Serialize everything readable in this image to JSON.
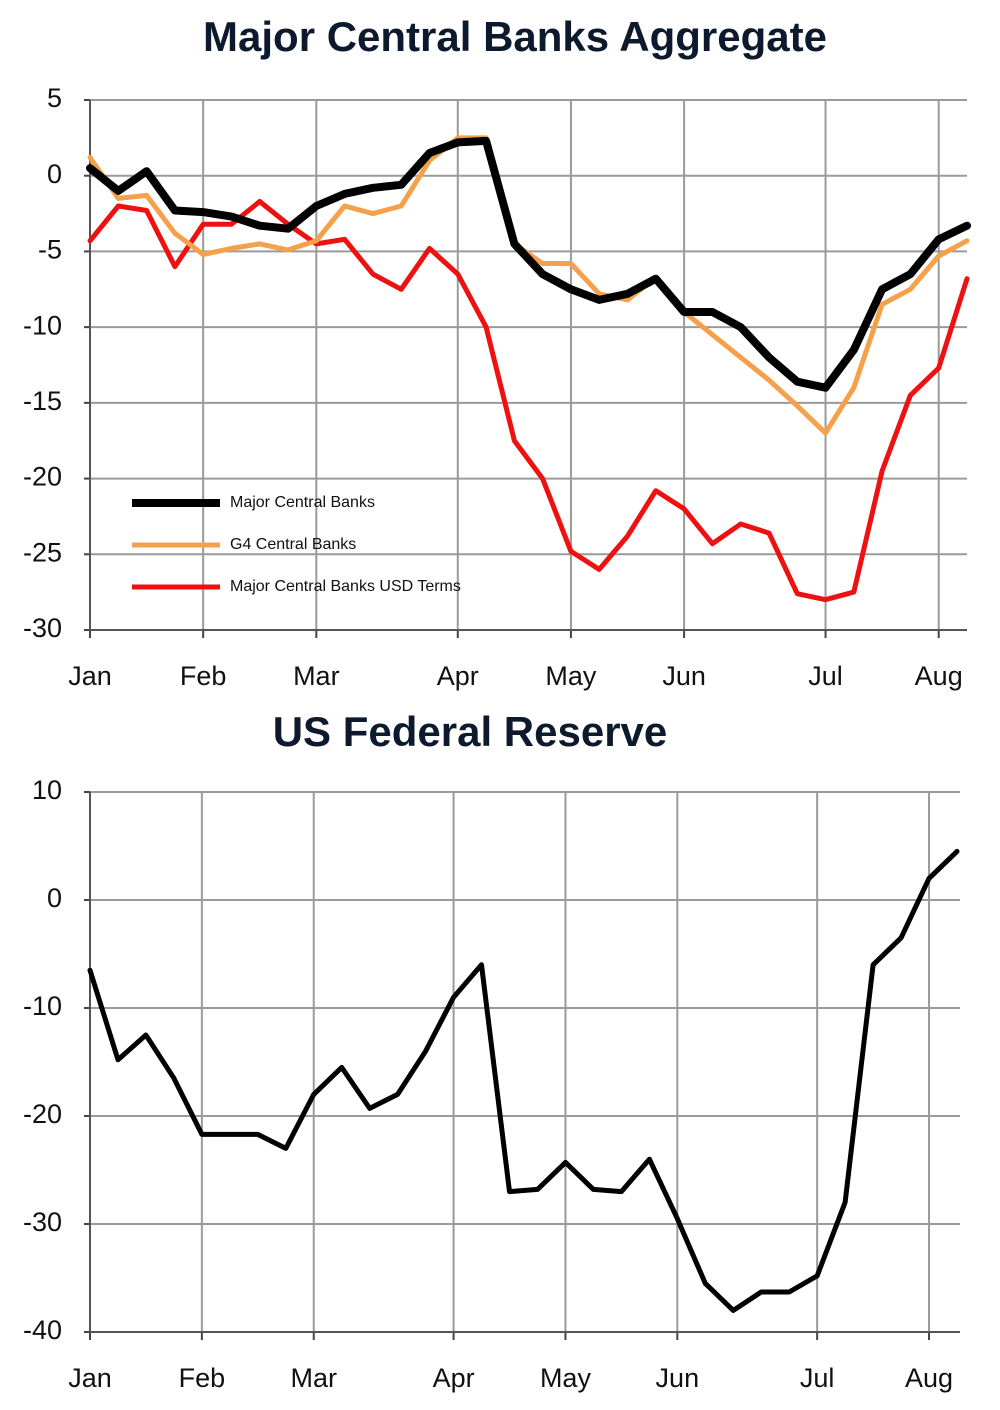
{
  "chart_data": [
    {
      "type": "line",
      "title": "Major Central Banks Aggregate",
      "categories": [
        "Jan",
        null,
        null,
        null,
        "Feb",
        null,
        null,
        null,
        "Mar",
        null,
        null,
        null,
        null,
        "Apr",
        null,
        null,
        null,
        "May",
        null,
        null,
        null,
        "Jun",
        null,
        null,
        null,
        null,
        "Jul",
        null,
        null,
        null,
        "Aug",
        null
      ],
      "ylim": [
        -30,
        5
      ],
      "yticks": [
        -30,
        -25,
        -20,
        -15,
        -10,
        -5,
        0,
        5
      ],
      "grid": true,
      "legend": "lower left",
      "series": [
        {
          "name": "Major Central Banks",
          "color": "#000000",
          "values": [
            0.5,
            -1,
            0.3,
            -2.3,
            -2.4,
            -2.7,
            -3.3,
            -3.5,
            -2,
            -1.2,
            -0.8,
            -0.6,
            1.5,
            2.2,
            2.3,
            -4.5,
            -6.5,
            -7.5,
            -8.2,
            -7.8,
            -6.8,
            -9,
            -9,
            -10,
            -12,
            -13.6,
            -14,
            -11.5,
            -7.5,
            -6.5,
            -4.2,
            -3.3
          ]
        },
        {
          "name": "G4 Central Banks",
          "color": "#f5a04a",
          "values": [
            1.2,
            -1.5,
            -1.3,
            -3.8,
            -5.2,
            -4.8,
            -4.5,
            -4.9,
            -4.3,
            -2,
            -2.5,
            -2,
            1,
            2.5,
            2.5,
            -4.5,
            -5.8,
            -5.8,
            -7.8,
            -8.2,
            -6.7,
            -9,
            -10.5,
            -12,
            -13.5,
            -15.2,
            -17,
            -14,
            -8.5,
            -7.5,
            -5.3,
            -4.3
          ]
        },
        {
          "name": "Major Central Banks USD Terms",
          "color": "#ee1111",
          "values": [
            -4.3,
            -2,
            -2.3,
            -6,
            -3.2,
            -3.2,
            -1.7,
            -3.2,
            -4.5,
            -4.2,
            -6.5,
            -7.5,
            -4.8,
            -6.5,
            -10,
            -17.5,
            -20,
            -24.8,
            -26,
            -23.8,
            -20.8,
            -22,
            -24.3,
            -23,
            -23.6,
            -27.6,
            -28,
            -27.5,
            -19.5,
            -14.5,
            -12.7,
            -6.8
          ]
        }
      ]
    },
    {
      "type": "line",
      "title": "US Federal Reserve",
      "categories": [
        "Jan",
        null,
        null,
        null,
        "Feb",
        null,
        null,
        null,
        "Mar",
        null,
        null,
        null,
        null,
        "Apr",
        null,
        null,
        null,
        "May",
        null,
        null,
        null,
        "Jun",
        null,
        null,
        null,
        null,
        "Jul",
        null,
        null,
        null,
        "Aug",
        null
      ],
      "ylim": [
        -40,
        10
      ],
      "yticks": [
        -40,
        -30,
        -20,
        -10,
        0,
        10
      ],
      "grid": true,
      "color": "#000000",
      "values": [
        -6.5,
        -14.8,
        -12.5,
        -16.5,
        -21.7,
        -21.7,
        -21.7,
        -23,
        -18,
        -15.5,
        -19.3,
        -18,
        -14,
        -9,
        -6,
        -27,
        -26.8,
        -24.3,
        -26.8,
        -27,
        -24,
        -29.5,
        -35.5,
        -38,
        -36.3,
        -36.3,
        -34.8,
        -28,
        -6,
        -3.5,
        2,
        4.5
      ]
    }
  ]
}
